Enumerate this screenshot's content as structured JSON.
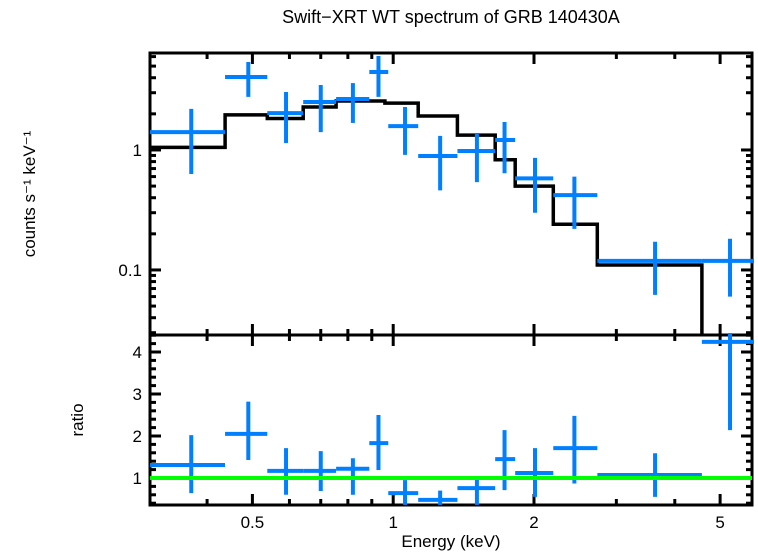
{
  "title": "Swift−XRT WT spectrum of GRB 140430A",
  "colors": {
    "background": "#ffffff",
    "data": "#0080FF",
    "model": "#000000",
    "unity_line": "#00FF00",
    "axes": "#000000"
  },
  "chart_data": [
    {
      "type": "scatter",
      "name": "spectrum",
      "xlabel": "Energy (keV)",
      "ylabel": "counts s⁻¹ keV⁻¹",
      "xscale": "log",
      "yscale": "log",
      "xlim": [
        0.302,
        5.85
      ],
      "ylim": [
        0.0287,
        6.43
      ],
      "grid": false,
      "legend": false,
      "xticks": [
        0.5,
        1,
        2,
        5
      ],
      "xtick_labels": [
        "0.5",
        "1",
        "2",
        "5"
      ],
      "yticks": [
        0.1,
        1
      ],
      "ytick_labels": [
        "0.1",
        "1"
      ],
      "point_columns": [
        "e",
        "e_lo",
        "e_hi",
        "counts",
        "counts_lo",
        "counts_hi"
      ],
      "series": [
        {
          "name": "data",
          "style": "error-cross",
          "color": "#0080FF",
          "points": [
            [
              0.37,
              0.302,
              0.437,
              1.41,
              0.63,
              2.2
            ],
            [
              0.49,
              0.437,
              0.538,
              4.06,
              2.77,
              5.41
            ],
            [
              0.59,
              0.538,
              0.642,
              2.03,
              1.14,
              3.04
            ],
            [
              0.7,
              0.642,
              0.755,
              2.51,
              1.41,
              3.48
            ],
            [
              0.82,
              0.755,
              0.889,
              2.66,
              1.68,
              3.61
            ],
            [
              0.93,
              0.889,
              0.976,
              4.47,
              2.77,
              6.07
            ],
            [
              1.06,
              0.976,
              1.131,
              1.58,
              0.91,
              2.28
            ],
            [
              1.26,
              1.131,
              1.372,
              0.89,
              0.46,
              1.31
            ],
            [
              1.51,
              1.372,
              1.652,
              0.98,
              0.54,
              1.36
            ],
            [
              1.73,
              1.652,
              1.823,
              1.21,
              0.64,
              1.71
            ],
            [
              2.01,
              1.823,
              2.199,
              0.58,
              0.3,
              0.86
            ],
            [
              2.44,
              2.199,
              2.732,
              0.42,
              0.22,
              0.6
            ],
            [
              3.63,
              2.732,
              4.571,
              0.119,
              0.062,
              0.172
            ],
            [
              5.25,
              4.571,
              6.05,
              0.119,
              0.06,
              0.182
            ]
          ]
        },
        {
          "name": "folded model",
          "style": "step-histogram",
          "color": "#000000",
          "step_columns": [
            "e_lo",
            "e_hi",
            "counts"
          ],
          "steps": [
            [
              0.302,
              0.437,
              1.05
            ],
            [
              0.437,
              0.538,
              1.96
            ],
            [
              0.538,
              0.642,
              1.83
            ],
            [
              0.642,
              0.755,
              2.28
            ],
            [
              0.755,
              0.96,
              2.56
            ],
            [
              0.96,
              1.131,
              2.46
            ],
            [
              1.131,
              1.372,
              1.92
            ],
            [
              1.372,
              1.652,
              1.33
            ],
            [
              1.652,
              1.823,
              0.83
            ],
            [
              1.823,
              2.199,
              0.5
            ],
            [
              2.199,
              2.732,
              0.24
            ],
            [
              2.732,
              4.571,
              0.11
            ]
          ]
        }
      ]
    },
    {
      "type": "scatter",
      "name": "ratio",
      "xlabel": "Energy (keV)",
      "ylabel": "ratio",
      "xscale": "log",
      "yscale": "linear",
      "xlim": [
        0.302,
        5.85
      ],
      "ylim": [
        0.357,
        4.405
      ],
      "grid": false,
      "legend": false,
      "xticks": [
        0.5,
        1,
        2,
        5
      ],
      "xtick_labels": [
        "0.5",
        "1",
        "2",
        "5"
      ],
      "yticks": [
        1,
        2,
        3,
        4
      ],
      "ytick_labels": [
        "1",
        "2",
        "3",
        "4"
      ],
      "reference_line": {
        "value": 1,
        "color": "#00FF00"
      },
      "point_columns": [
        "e",
        "e_lo",
        "e_hi",
        "ratio",
        "ratio_lo",
        "ratio_hi"
      ],
      "points": [
        [
          0.37,
          0.302,
          0.437,
          1.31,
          0.64,
          2.02
        ],
        [
          0.49,
          0.437,
          0.538,
          2.05,
          1.43,
          2.82
        ],
        [
          0.59,
          0.538,
          0.642,
          1.17,
          0.6,
          1.71
        ],
        [
          0.7,
          0.642,
          0.755,
          1.17,
          0.69,
          1.64
        ],
        [
          0.82,
          0.755,
          0.889,
          1.22,
          0.6,
          1.47
        ],
        [
          0.93,
          0.889,
          0.976,
          1.83,
          1.19,
          2.5
        ],
        [
          1.06,
          0.976,
          1.131,
          0.64,
          0.36,
          0.95
        ],
        [
          1.26,
          1.131,
          1.372,
          0.48,
          0.36,
          0.7
        ],
        [
          1.51,
          1.372,
          1.652,
          0.76,
          0.36,
          0.97
        ],
        [
          1.73,
          1.652,
          1.823,
          1.45,
          0.71,
          2.14
        ],
        [
          2.01,
          1.823,
          2.199,
          1.12,
          0.55,
          1.71
        ],
        [
          2.44,
          2.199,
          2.732,
          1.71,
          0.87,
          2.48
        ],
        [
          3.63,
          2.732,
          4.571,
          1.07,
          0.55,
          1.59
        ],
        [
          5.25,
          4.571,
          6.05,
          4.24,
          2.14,
          4.5
        ]
      ]
    }
  ]
}
